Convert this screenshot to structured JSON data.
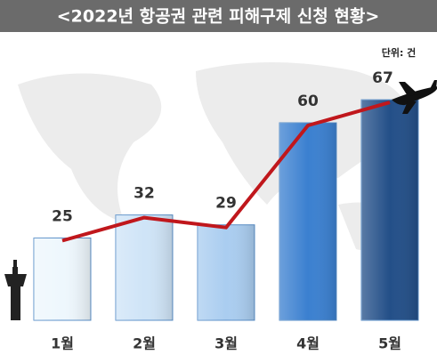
{
  "chart_data": {
    "type": "bar",
    "title": "<2022년 항공권 관련 피해구제 신청 현황>",
    "unit_label": "단위: 건",
    "categories": [
      "1월",
      "2월",
      "3월",
      "4월",
      "5월"
    ],
    "values": [
      25,
      32,
      29,
      60,
      67
    ],
    "colors": [
      "#eef7fd",
      "#cfe4f7",
      "#aacdf0",
      "#3b80d0",
      "#234f88"
    ],
    "line_color": "#c0171c"
  }
}
